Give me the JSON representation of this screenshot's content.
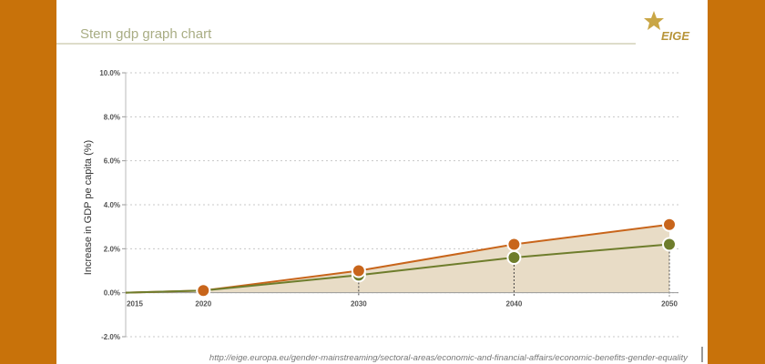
{
  "chart_data": {
    "type": "line",
    "title": "Stem gdp graph chart",
    "logo": "EIGE",
    "y_label": "Increase in GDP pe capita (%)",
    "source": "http://eige.europa.eu/gender-mainstreaming/sectoral-areas/economic-and-financial-affairs/economic-benefits-gender-equality",
    "x": [
      2015,
      2020,
      2030,
      2040,
      2050
    ],
    "xlim": [
      2015,
      2050
    ],
    "xticks": [
      2015,
      2020,
      2030,
      2040,
      2050
    ],
    "ylim": [
      -2,
      10
    ],
    "yticks": [
      {
        "value": -2,
        "label": "-2.0%"
      },
      {
        "value": 0,
        "label": "0.0%"
      },
      {
        "value": 2,
        "label": "2.0%"
      },
      {
        "value": 4,
        "label": "4.0%"
      },
      {
        "value": 6,
        "label": "6.0%"
      },
      {
        "value": 8,
        "label": "8.0%"
      },
      {
        "value": 10,
        "label": "10.0%"
      }
    ],
    "series": [
      {
        "color": "#c8651b",
        "values": [
          0,
          0.1,
          1.0,
          2.2,
          3.1
        ]
      },
      {
        "color": "#6e7d2c",
        "values": [
          0,
          0.1,
          0.8,
          1.6,
          2.2
        ]
      }
    ]
  }
}
